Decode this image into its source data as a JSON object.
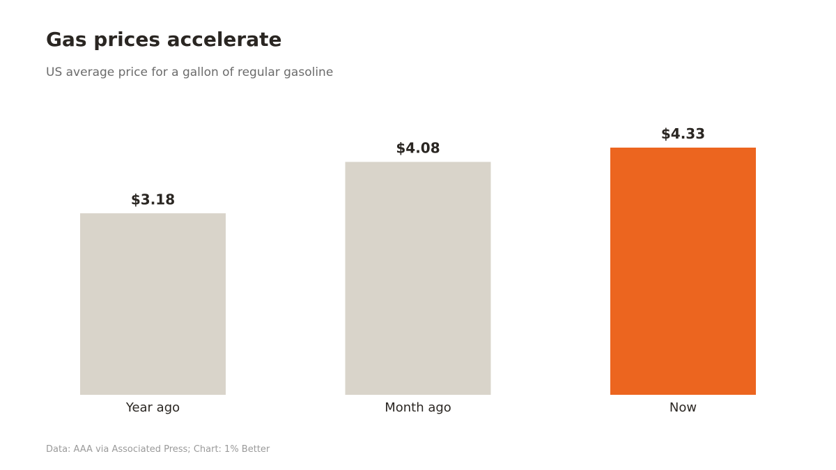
{
  "header": {
    "title": "Gas prices accelerate",
    "subtitle": "US average price for a gallon of regular gasoline"
  },
  "footer": {
    "source": "Data: AAA via Associated Press; Chart: 1% Better"
  },
  "chart_data": {
    "type": "bar",
    "categories": [
      "Year ago",
      "Month ago",
      "Now"
    ],
    "values": [
      3.18,
      4.08,
      4.33
    ],
    "value_labels": [
      "$3.18",
      "$4.08",
      "$4.33"
    ],
    "colors": [
      "#d9d4ca",
      "#d9d4ca",
      "#ec651f"
    ],
    "ylim": [
      0,
      4.33
    ],
    "grid": false,
    "legend": "none"
  }
}
